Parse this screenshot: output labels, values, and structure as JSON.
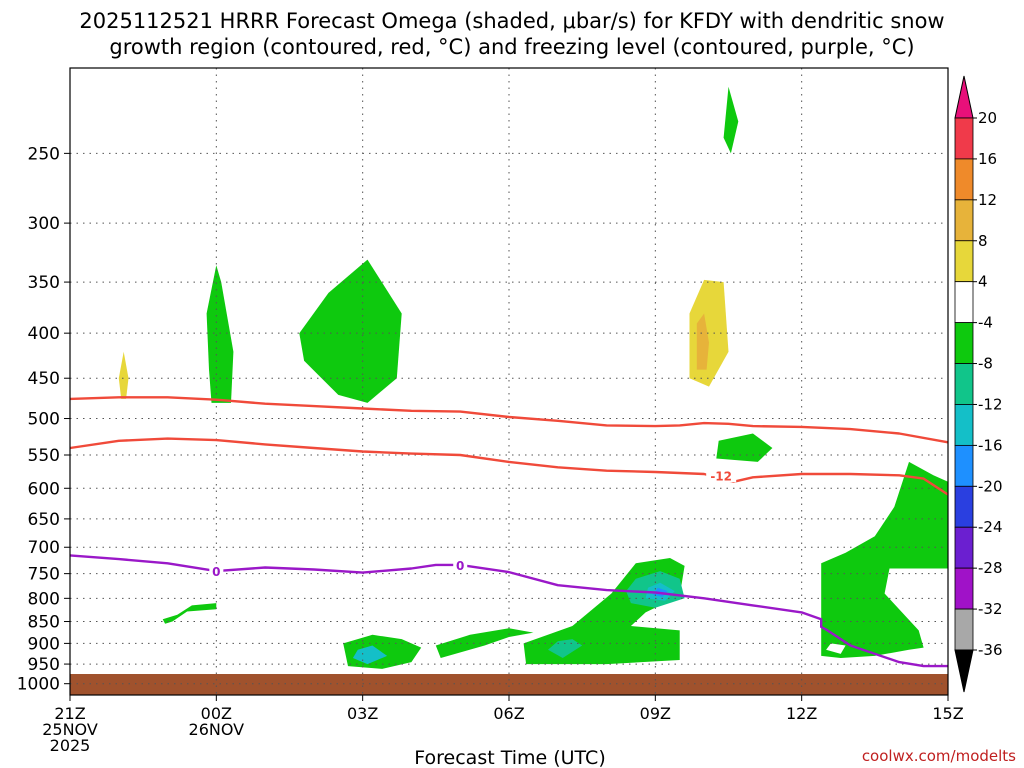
{
  "chart_data": {
    "type": "heatmap",
    "title_line1": "2025112521 HRRR Forecast Omega (shaded, μbar/s) for KFDY with dendritic snow",
    "title_line2": "growth region (contoured, red, °C) and freezing level (contoured, purple, °C)",
    "xlabel": "Forecast Time (UTC)",
    "credit": "coolwx.com/modelts",
    "x_ticks": [
      {
        "h": 0,
        "lines": [
          "21Z",
          "25NOV",
          "2025"
        ]
      },
      {
        "h": 3,
        "lines": [
          "00Z",
          "26NOV"
        ]
      },
      {
        "h": 6,
        "lines": [
          "03Z"
        ]
      },
      {
        "h": 9,
        "lines": [
          "06Z"
        ]
      },
      {
        "h": 12,
        "lines": [
          "09Z"
        ]
      },
      {
        "h": 15,
        "lines": [
          "12Z"
        ]
      },
      {
        "h": 18,
        "lines": [
          "15Z"
        ]
      }
    ],
    "y_ticks": [
      250,
      300,
      350,
      400,
      450,
      500,
      550,
      600,
      650,
      700,
      750,
      800,
      850,
      900,
      950,
      1000
    ],
    "x_range_hours": [
      0,
      18
    ],
    "y_range_hpa": [
      200,
      1030
    ],
    "y_scale": "log",
    "grid": true,
    "colorbar": {
      "ticks": [
        "20",
        "16",
        "12",
        "8",
        "4",
        "-4",
        "-8",
        "-12",
        "-16",
        "-20",
        "-24",
        "-28",
        "-32",
        "-36"
      ],
      "levels": [
        20,
        16,
        12,
        8,
        4,
        -4,
        -8,
        -12,
        -16,
        -20,
        -24,
        -28,
        -32,
        -36
      ],
      "colors": [
        "#f03a4a",
        "#ef8a2a",
        "#e7b33a",
        "#e7d73a",
        "#ffffff",
        "#0ec90e",
        "#11c58a",
        "#14bfc8",
        "#1e90ff",
        "#2a3fe0",
        "#6b1fd0",
        "#a012c8",
        "#a8a8a8"
      ],
      "top_color": "#e8107a",
      "bottom_color": "#000000"
    },
    "ground": {
      "from_hpa": 975,
      "to_hpa": 1030,
      "color": "#a0522d"
    },
    "contours": [
      {
        "name": "-12",
        "color": "#f04a3a",
        "points": [
          [
            0,
            540
          ],
          [
            1,
            530
          ],
          [
            2,
            527
          ],
          [
            3,
            529
          ],
          [
            4,
            535
          ],
          [
            5,
            540
          ],
          [
            6,
            545
          ],
          [
            7,
            548
          ],
          [
            8,
            550
          ],
          [
            9,
            560
          ],
          [
            10,
            568
          ],
          [
            11,
            573
          ],
          [
            12,
            575
          ],
          [
            13,
            578
          ],
          [
            13.6,
            590
          ],
          [
            14,
            583
          ],
          [
            15,
            578
          ],
          [
            16,
            578
          ],
          [
            17,
            580
          ],
          [
            17.5,
            585
          ],
          [
            18,
            610
          ]
        ]
      },
      {
        "name": "-12 upper",
        "color": "#f04a3a",
        "points": [
          [
            0,
            475
          ],
          [
            1,
            473
          ],
          [
            2,
            473
          ],
          [
            3,
            476
          ],
          [
            4,
            481
          ],
          [
            5,
            484
          ],
          [
            6,
            487
          ],
          [
            7,
            490
          ],
          [
            8,
            491
          ],
          [
            9,
            498
          ],
          [
            10,
            503
          ],
          [
            11,
            509
          ],
          [
            12,
            510
          ],
          [
            12.5,
            509
          ],
          [
            13,
            506
          ],
          [
            13.5,
            507
          ],
          [
            14,
            510
          ],
          [
            15,
            511
          ],
          [
            16,
            514
          ],
          [
            17,
            520
          ],
          [
            18,
            532
          ]
        ]
      },
      {
        "name": "0",
        "color": "#9a18c8",
        "points": [
          [
            0,
            715
          ],
          [
            1,
            722
          ],
          [
            2,
            730
          ],
          [
            3,
            745
          ],
          [
            4,
            738
          ],
          [
            5,
            742
          ],
          [
            6,
            748
          ],
          [
            7,
            740
          ],
          [
            7.5,
            733
          ],
          [
            8,
            733
          ],
          [
            9,
            747
          ],
          [
            10,
            773
          ],
          [
            11,
            783
          ],
          [
            12,
            788
          ],
          [
            13,
            800
          ],
          [
            14,
            815
          ],
          [
            15,
            830
          ],
          [
            15.4,
            845
          ],
          [
            15.4,
            862
          ],
          [
            15.5,
            868
          ],
          [
            16,
            905
          ],
          [
            17,
            945
          ],
          [
            17.5,
            955
          ],
          [
            18,
            955
          ]
        ]
      }
    ],
    "contour_labels": [
      {
        "text": "-12",
        "x": 13.35,
        "p": 580,
        "color": "#f04a3a"
      },
      {
        "text": "0",
        "x": 3.0,
        "p": 745,
        "color": "#9a18c8"
      },
      {
        "text": "0",
        "x": 8.0,
        "p": 733,
        "color": "#9a18c8"
      }
    ],
    "regions": [
      {
        "level": 4,
        "pts": [
          [
            0.7,
            700
          ],
          [
            0.95,
            700
          ],
          [
            1.2,
            560
          ],
          [
            1.45,
            470
          ],
          [
            1.3,
            370
          ],
          [
            1.05,
            330
          ],
          [
            0.9,
            370
          ],
          [
            0.6,
            450
          ],
          [
            0.45,
            530
          ],
          [
            0.6,
            600
          ]
        ]
      },
      {
        "level": 8,
        "pts": [
          [
            1.05,
            475
          ],
          [
            1.15,
            475
          ],
          [
            1.2,
            450
          ],
          [
            1.1,
            420
          ],
          [
            1.0,
            450
          ]
        ]
      },
      {
        "level": -4,
        "pts": [
          [
            2.9,
            480
          ],
          [
            3.3,
            480
          ],
          [
            3.35,
            420
          ],
          [
            3.1,
            350
          ],
          [
            3.0,
            335
          ],
          [
            2.8,
            380
          ],
          [
            2.85,
            440
          ]
        ]
      },
      {
        "level": -4,
        "pts": [
          [
            4.8,
            430
          ],
          [
            5.5,
            470
          ],
          [
            6.1,
            480
          ],
          [
            6.7,
            450
          ],
          [
            6.8,
            380
          ],
          [
            6.1,
            330
          ],
          [
            5.3,
            360
          ],
          [
            4.7,
            400
          ]
        ]
      },
      {
        "level": -4,
        "pts": [
          [
            1.9,
            845
          ],
          [
            2.2,
            835
          ],
          [
            2.5,
            815
          ],
          [
            3.0,
            810
          ],
          [
            3.0,
            823
          ],
          [
            2.4,
            828
          ],
          [
            2.1,
            850
          ],
          [
            1.95,
            855
          ]
        ]
      },
      {
        "level": 4,
        "pts": [
          [
            3.9,
            860
          ],
          [
            4.5,
            860
          ],
          [
            5.3,
            840
          ],
          [
            6.0,
            815
          ],
          [
            5.9,
            790
          ],
          [
            4.9,
            795
          ],
          [
            3.9,
            810
          ]
        ]
      },
      {
        "level": 4,
        "pts": [
          [
            0.7,
            940
          ],
          [
            0.95,
            925
          ],
          [
            0.8,
            905
          ],
          [
            0.55,
            915
          ],
          [
            0.45,
            935
          ]
        ]
      },
      {
        "level": -4,
        "pts": [
          [
            5.7,
            955
          ],
          [
            6.4,
            962
          ],
          [
            7.0,
            945
          ],
          [
            7.2,
            910
          ],
          [
            6.8,
            890
          ],
          [
            6.2,
            880
          ],
          [
            5.6,
            900
          ]
        ]
      },
      {
        "level": -12,
        "pts": [
          [
            5.8,
            935
          ],
          [
            6.1,
            950
          ],
          [
            6.5,
            930
          ],
          [
            6.2,
            905
          ],
          [
            5.9,
            915
          ]
        ]
      },
      {
        "level": -4,
        "pts": [
          [
            7.6,
            935
          ],
          [
            8.5,
            905
          ],
          [
            9.0,
            885
          ],
          [
            9.5,
            875
          ],
          [
            9.0,
            865
          ],
          [
            8.2,
            880
          ],
          [
            7.5,
            905
          ]
        ]
      },
      {
        "level": -4,
        "pts": [
          [
            9.35,
            950
          ],
          [
            11.0,
            950
          ],
          [
            12.5,
            940
          ],
          [
            12.5,
            870
          ],
          [
            11.5,
            860
          ],
          [
            11.8,
            830
          ],
          [
            12.5,
            795
          ],
          [
            12.6,
            735
          ],
          [
            12.3,
            720
          ],
          [
            11.6,
            730
          ],
          [
            11.1,
            790
          ],
          [
            10.3,
            860
          ],
          [
            9.3,
            900
          ]
        ]
      },
      {
        "level": -8,
        "pts": [
          [
            10.1,
            935
          ],
          [
            10.3,
            920
          ],
          [
            10.5,
            905
          ],
          [
            10.3,
            890
          ],
          [
            10.0,
            895
          ],
          [
            9.8,
            915
          ]
        ]
      },
      {
        "level": -8,
        "pts": [
          [
            11.5,
            810
          ],
          [
            12.0,
            820
          ],
          [
            12.6,
            800
          ],
          [
            12.5,
            760
          ],
          [
            12.1,
            745
          ],
          [
            11.6,
            760
          ],
          [
            11.4,
            785
          ]
        ]
      },
      {
        "level": -12,
        "pts": [
          [
            11.8,
            800
          ],
          [
            12.2,
            805
          ],
          [
            12.4,
            785
          ],
          [
            12.1,
            768
          ],
          [
            11.85,
            778
          ]
        ]
      },
      {
        "level": -16,
        "pts": [
          [
            11.95,
            793
          ],
          [
            12.15,
            797
          ],
          [
            12.25,
            785
          ],
          [
            12.05,
            778
          ]
        ]
      },
      {
        "level": 4,
        "pts": [
          [
            9.6,
            820
          ],
          [
            9.9,
            830
          ],
          [
            9.75,
            800
          ],
          [
            9.55,
            805
          ]
        ]
      },
      {
        "level": 4,
        "pts": [
          [
            12.45,
            500
          ],
          [
            12.8,
            520
          ],
          [
            13.3,
            510
          ],
          [
            13.7,
            460
          ],
          [
            14.0,
            400
          ],
          [
            14.0,
            340
          ],
          [
            13.6,
            290
          ],
          [
            12.6,
            295
          ],
          [
            12.3,
            330
          ],
          [
            12.3,
            420
          ]
        ]
      },
      {
        "level": 8,
        "pts": [
          [
            12.7,
            450
          ],
          [
            13.1,
            460
          ],
          [
            13.5,
            420
          ],
          [
            13.4,
            350
          ],
          [
            13.0,
            348
          ],
          [
            12.7,
            380
          ]
        ]
      },
      {
        "level": 12,
        "pts": [
          [
            12.85,
            440
          ],
          [
            13.05,
            440
          ],
          [
            13.1,
            410
          ],
          [
            13.0,
            380
          ],
          [
            12.85,
            390
          ]
        ]
      },
      {
        "level": -4,
        "pts": [
          [
            13.25,
            555
          ],
          [
            14.1,
            560
          ],
          [
            14.4,
            540
          ],
          [
            14.0,
            520
          ],
          [
            13.3,
            530
          ]
        ]
      },
      {
        "level": -4,
        "pts": [
          [
            13.55,
            250
          ],
          [
            13.7,
            230
          ],
          [
            13.5,
            210
          ],
          [
            13.4,
            240
          ]
        ]
      },
      {
        "level": 4,
        "pts": [
          [
            14.6,
            260
          ],
          [
            14.85,
            255
          ],
          [
            14.7,
            215
          ],
          [
            14.55,
            240
          ]
        ]
      },
      {
        "level": 4,
        "pts": [
          [
            14.9,
            610
          ],
          [
            15.3,
            620
          ],
          [
            15.7,
            550
          ],
          [
            16.0,
            450
          ],
          [
            15.8,
            420
          ],
          [
            15.2,
            500
          ],
          [
            14.8,
            560
          ]
        ]
      },
      {
        "level": 4,
        "pts": [
          [
            16.0,
            365
          ],
          [
            16.5,
            365
          ],
          [
            17.0,
            355
          ],
          [
            17.3,
            340
          ],
          [
            17.2,
            300
          ],
          [
            16.9,
            275
          ],
          [
            16.7,
            300
          ],
          [
            16.3,
            350
          ],
          [
            16.0,
            355
          ]
        ]
      },
      {
        "level": -4,
        "pts": [
          [
            15.4,
            930
          ],
          [
            15.8,
            935
          ],
          [
            16.5,
            930
          ],
          [
            17.2,
            915
          ],
          [
            17.5,
            910
          ],
          [
            17.4,
            870
          ],
          [
            16.7,
            790
          ],
          [
            16.8,
            740
          ],
          [
            17.7,
            740
          ],
          [
            18,
            740
          ],
          [
            18,
            590
          ],
          [
            17.7,
            580
          ],
          [
            17.2,
            560
          ],
          [
            16.9,
            630
          ],
          [
            16.5,
            680
          ],
          [
            15.9,
            710
          ],
          [
            15.4,
            730
          ],
          [
            15.4,
            800
          ]
        ]
      },
      {
        "level": 4,
        "pts": [
          [
            15.5,
            915
          ],
          [
            15.8,
            925
          ],
          [
            15.9,
            905
          ],
          [
            15.6,
            900
          ]
        ]
      },
      {
        "level": 4,
        "pts": [
          [
            15.5,
            300
          ],
          [
            15.5,
            300
          ]
        ]
      },
      {
        "level": 4,
        "pts": [
          [
            17.8,
            390
          ],
          [
            17.9,
            460
          ],
          [
            18,
            480
          ],
          [
            18,
            370
          ],
          [
            17.9,
            370
          ]
        ]
      },
      {
        "level": 4,
        "pts": [
          [
            17.45,
            945
          ],
          [
            17.5,
            935
          ],
          [
            17.5,
            925
          ],
          [
            17.4,
            930
          ]
        ]
      }
    ]
  }
}
